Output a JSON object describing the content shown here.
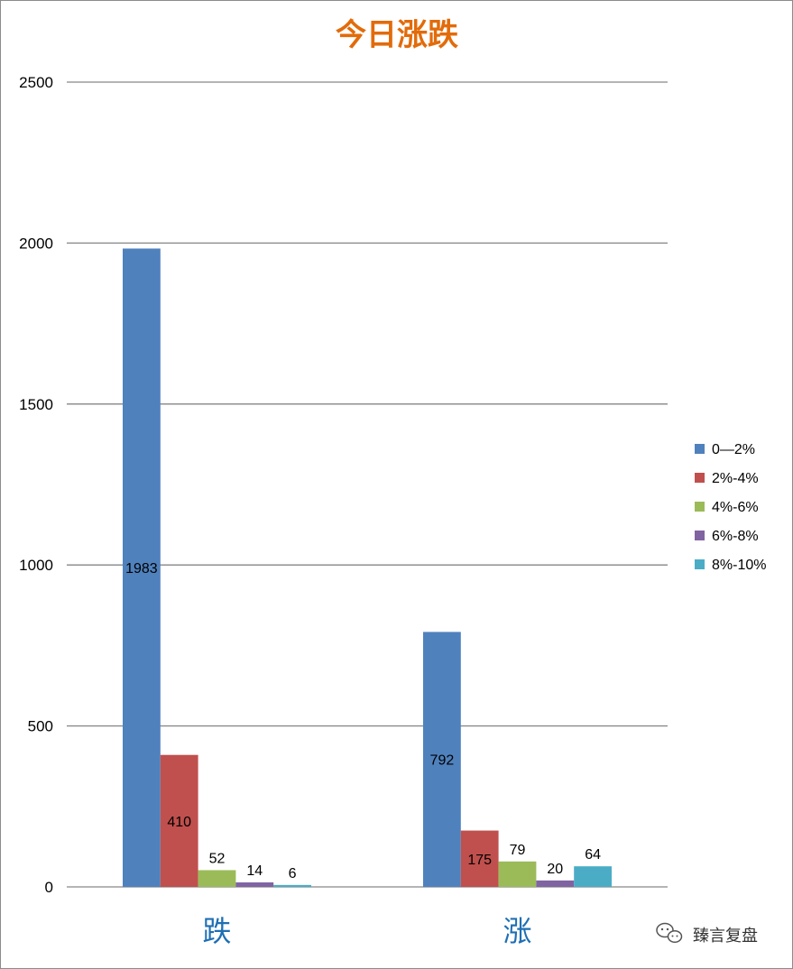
{
  "chart_data": {
    "type": "bar",
    "title": "今日涨跌",
    "categories": [
      "跌",
      "涨"
    ],
    "series": [
      {
        "name": "0—2%",
        "color": "#4f81bd",
        "values": [
          1983,
          792
        ],
        "labels": [
          "1983",
          "792"
        ]
      },
      {
        "name": "2%-4%",
        "color": "#c0504d",
        "values": [
          410,
          175
        ],
        "labels": [
          "410",
          "175"
        ]
      },
      {
        "name": "4%-6%",
        "color": "#9bbb59",
        "values": [
          52,
          79
        ],
        "labels": [
          "52",
          "79"
        ]
      },
      {
        "name": "6%-8%",
        "color": "#8064a2",
        "values": [
          14,
          20
        ],
        "labels": [
          "14",
          "20"
        ]
      },
      {
        "name": "8%-10%",
        "color": "#4bacc6",
        "values": [
          6,
          64
        ],
        "labels": [
          "6",
          "64"
        ]
      }
    ],
    "ylim": [
      0,
      2500
    ],
    "yticks": [
      0,
      500,
      1000,
      1500,
      2000,
      2500
    ],
    "ytick_labels": [
      "0",
      "500",
      "1000",
      "1500",
      "2000",
      "2500"
    ],
    "xlabel": "",
    "ylabel": "",
    "grid": true,
    "legend_position": "right"
  },
  "watermark": {
    "text": "臻言复盘",
    "icon": "wechat-icon"
  },
  "colors": {
    "title": "#e26b0a",
    "category_label": "#1f6fb4",
    "gridline": "#868686"
  }
}
